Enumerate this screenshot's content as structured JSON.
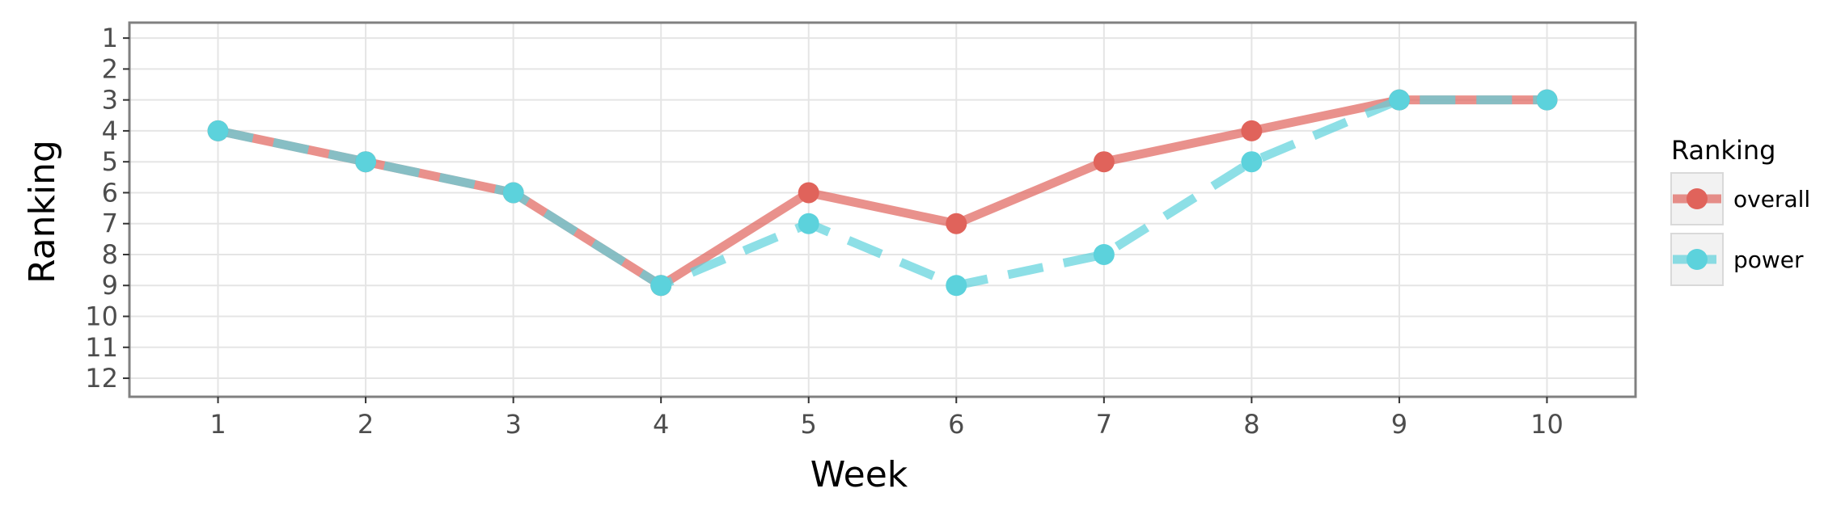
{
  "chart_data": {
    "type": "line",
    "xlabel": "Week",
    "ylabel": "Ranking",
    "x": [
      1,
      2,
      3,
      4,
      5,
      6,
      7,
      8,
      9,
      10
    ],
    "x_ticks": [
      "1",
      "2",
      "3",
      "4",
      "5",
      "6",
      "7",
      "8",
      "9",
      "10"
    ],
    "y_ticks": [
      "1",
      "2",
      "3",
      "4",
      "5",
      "6",
      "7",
      "8",
      "9",
      "10",
      "11",
      "12"
    ],
    "xlim": [
      0.4,
      10.6
    ],
    "ylim": [
      0.5,
      12.6
    ],
    "y_reversed": true,
    "grid": true,
    "legend": {
      "title": "Ranking",
      "position": "right"
    },
    "series": [
      {
        "name": "overall",
        "values": [
          4,
          5,
          6,
          9,
          6,
          7,
          5,
          4,
          3,
          3
        ],
        "color": "#E0635B",
        "line_style": "solid"
      },
      {
        "name": "power",
        "values": [
          4,
          5,
          6,
          9,
          7,
          9,
          8,
          5,
          3,
          3
        ],
        "color": "#5CD2DC",
        "line_style": "dashed"
      }
    ]
  }
}
